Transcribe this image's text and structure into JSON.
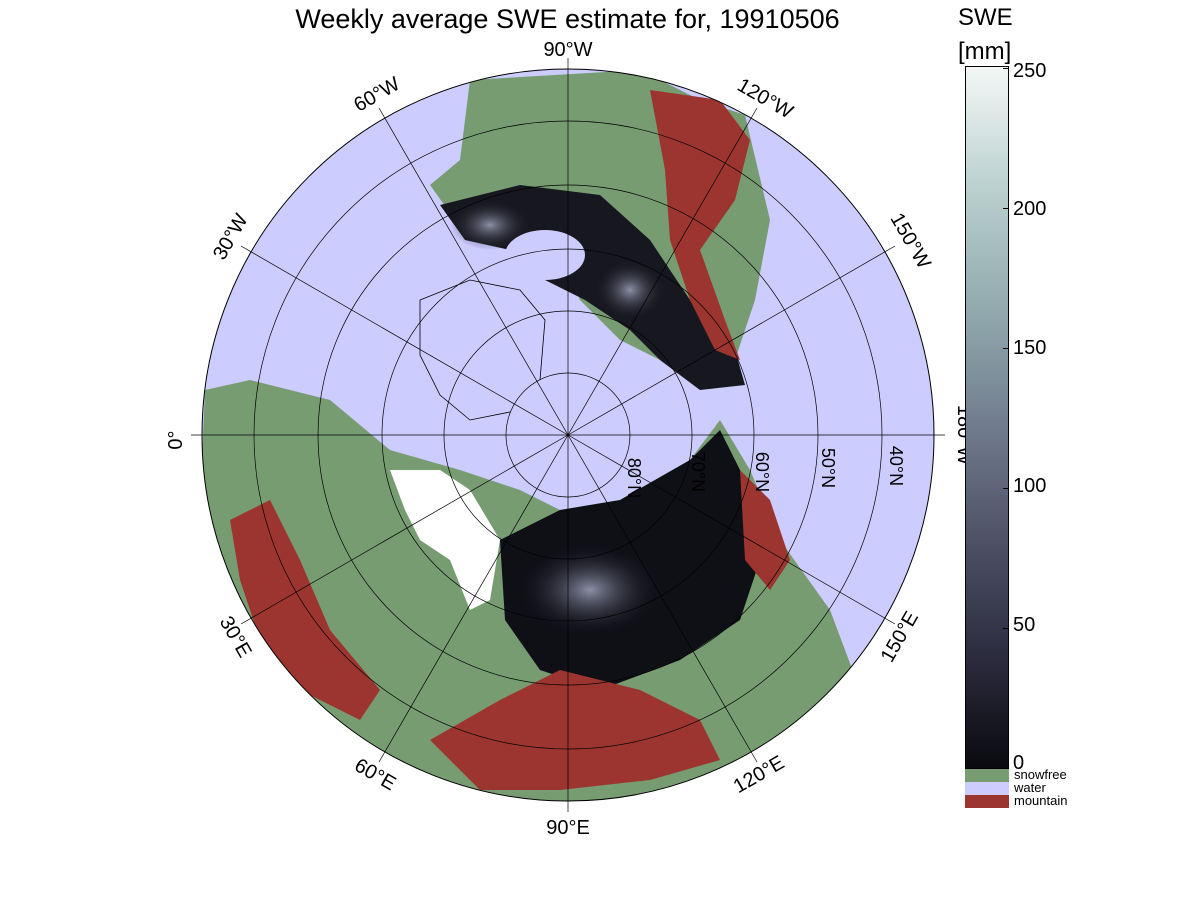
{
  "title": "Weekly average SWE estimate for, 19910506",
  "map": {
    "projection": "north polar stereographic",
    "longitude_labels": [
      "90°W",
      "60°W",
      "30°W",
      "0°",
      "30°E",
      "60°E",
      "90°E",
      "120°E",
      "150°E",
      "180°W",
      "150°W",
      "120°W"
    ],
    "latitude_labels": [
      "80°N",
      "70°N",
      "60°N",
      "50°N",
      "40°N"
    ]
  },
  "colorbar": {
    "title": "SWE",
    "unit": "[mm]",
    "ticks": [
      "0",
      "50",
      "100",
      "150",
      "200",
      "250"
    ],
    "range": [
      0,
      250
    ],
    "colors": {
      "low": "#0a0a0f",
      "mid": "#6f7a8c",
      "high": "#f3f7f6"
    }
  },
  "categories": [
    {
      "label": "snowfree",
      "color": "#779c72"
    },
    {
      "label": "water",
      "color": "#ccccff"
    },
    {
      "label": "mountain",
      "color": "#9c3530"
    }
  ]
}
